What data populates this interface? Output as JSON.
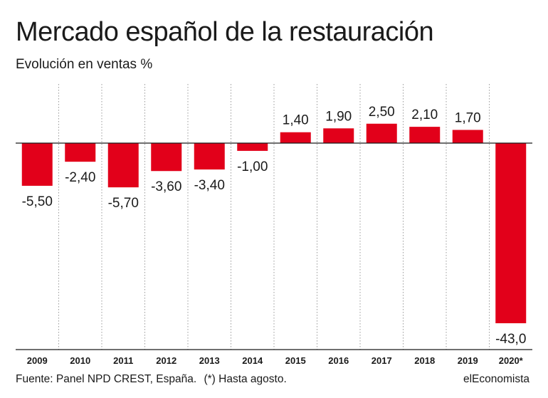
{
  "header": {
    "title": "Mercado español de la restauración",
    "subtitle": "Evolución en ventas %"
  },
  "footer": {
    "source": "Fuente: Panel NPD CREST, España.",
    "note": "(*) Hasta agosto.",
    "brand": "elEconomista"
  },
  "chart_data": {
    "type": "bar",
    "title": "Mercado español de la restauración",
    "subtitle": "Evolución en ventas %",
    "categories": [
      "2009",
      "2010",
      "2011",
      "2012",
      "2013",
      "2014",
      "2015",
      "2016",
      "2017",
      "2018",
      "2019",
      "2020*"
    ],
    "values": [
      -5.5,
      -2.4,
      -5.7,
      -3.6,
      -3.4,
      -1.0,
      1.4,
      1.9,
      2.5,
      2.1,
      1.7,
      -43.0
    ],
    "labels": [
      "-5,50",
      "-2,40",
      "-5,70",
      "-3,60",
      "-3,40",
      "-1,00",
      "1,40",
      "1,90",
      "2,50",
      "2,10",
      "1,70",
      "-43,0"
    ],
    "ylabel": "",
    "xlabel": "",
    "grid": "vertical dotted",
    "bar_color": "#e2001a",
    "note": "Scale broken for 2020* value"
  }
}
